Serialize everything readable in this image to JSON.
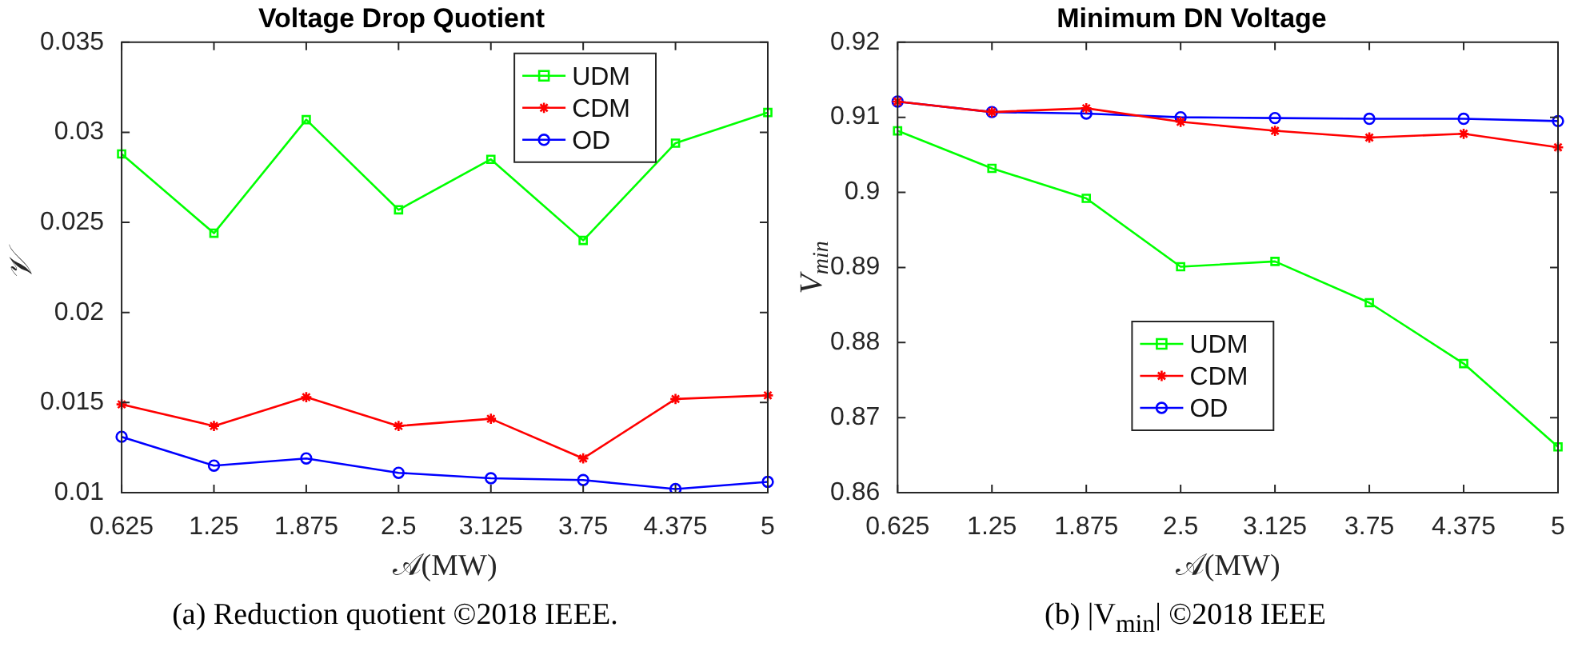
{
  "chart_data": [
    {
      "type": "line",
      "title": "Voltage Drop Quotient",
      "xlabel": "𝒜(MW)",
      "ylabel": "𝒱",
      "categories": [
        "0.625",
        "1.25",
        "1.875",
        "2.5",
        "3.125",
        "3.75",
        "4.375",
        "5"
      ],
      "series": [
        {
          "name": "UDM",
          "color": "#00ff00",
          "marker": "square",
          "values": [
            0.0288,
            0.0244,
            0.0307,
            0.0257,
            0.0285,
            0.024,
            0.0294,
            0.0311
          ]
        },
        {
          "name": "CDM",
          "color": "#ff0000",
          "marker": "cross",
          "values": [
            0.0149,
            0.0137,
            0.0153,
            0.0137,
            0.0141,
            0.0119,
            0.0152,
            0.0154
          ]
        },
        {
          "name": "OD",
          "color": "#0000ff",
          "marker": "circle",
          "values": [
            0.0131,
            0.0115,
            0.0119,
            0.0111,
            0.0108,
            0.0107,
            0.0102,
            0.0106
          ]
        }
      ],
      "ylim": [
        0.01,
        0.035
      ],
      "yticks": [
        0.01,
        0.015,
        0.02,
        0.025,
        0.03,
        0.035
      ],
      "grid": false,
      "legend": "top right",
      "annotations": [
        "(a) Reduction quotient ©2018 IEEE."
      ]
    },
    {
      "type": "line",
      "title": "Minimum DN Voltage",
      "xlabel": "𝒜(MW)",
      "ylabel": "V$_{min}$",
      "categories": [
        "0.625",
        "1.25",
        "1.875",
        "2.5",
        "3.125",
        "3.75",
        "4.375",
        "5"
      ],
      "series": [
        {
          "name": "UDM",
          "color": "#00ff00",
          "marker": "square",
          "values": [
            0.9082,
            0.9032,
            0.8992,
            0.8901,
            0.8908,
            0.8853,
            0.8772,
            0.8661
          ]
        },
        {
          "name": "CDM",
          "color": "#ff0000",
          "marker": "cross",
          "values": [
            0.9121,
            0.9107,
            0.9112,
            0.9094,
            0.9082,
            0.9073,
            0.9078,
            0.906
          ]
        },
        {
          "name": "OD",
          "color": "#0000ff",
          "marker": "circle",
          "values": [
            0.9121,
            0.9107,
            0.9105,
            0.91,
            0.9099,
            0.9098,
            0.9098,
            0.9095
          ]
        }
      ],
      "ylim": [
        0.86,
        0.92
      ],
      "yticks": [
        0.86,
        0.87,
        0.88,
        0.89,
        0.9,
        0.91,
        0.92
      ],
      "grid": false,
      "legend": "bottom",
      "annotations": [
        "(b) |V$_{min}$| ©2018 IEEE"
      ]
    }
  ]
}
